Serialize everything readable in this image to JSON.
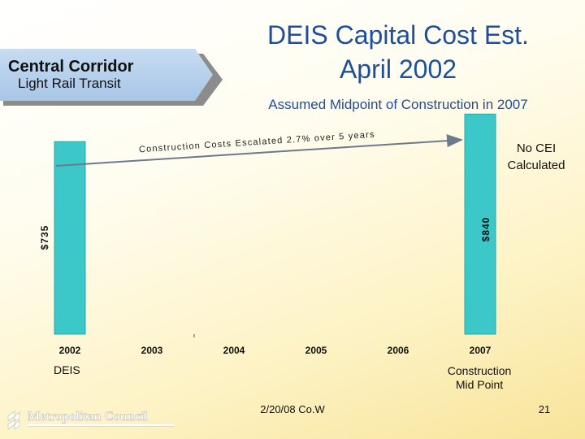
{
  "banner": {
    "title": "Central Corridor",
    "subtitle": "Light Rail Transit"
  },
  "header": {
    "title_line1": "DEIS Capital Cost Est.",
    "title_line2": "April 2002",
    "subtitle": "Assumed Midpoint of Construction in 2007"
  },
  "notes": {
    "no_cei_line1": "No CEI",
    "no_cei_line2": "Calculated",
    "deis": "DEIS",
    "construction_line1": "Construction",
    "construction_line2": "Mid Point"
  },
  "footer": {
    "date": "2/20/08 Co.W",
    "page": "21",
    "logo_text": "Metropolitan Council"
  },
  "colors": {
    "bar": "#3cc8c8",
    "bar_edge": "#2aa9a9",
    "title": "#1f4e9a",
    "arrow": "#6c7a8c"
  },
  "chart_data": {
    "type": "bar",
    "categories": [
      "2002",
      "2003",
      "2004",
      "2005",
      "2006",
      "2007"
    ],
    "values": [
      735,
      null,
      null,
      null,
      null,
      840
    ],
    "bar_labels": [
      "$735",
      "",
      "",
      "",
      "",
      "$840"
    ],
    "annotation": "Construction Costs Escalated 2.7% over 5 years",
    "annotation_from": "2002",
    "annotation_to": "2007",
    "ylim": [
      0,
      900
    ],
    "grid": false,
    "legend": "none"
  }
}
